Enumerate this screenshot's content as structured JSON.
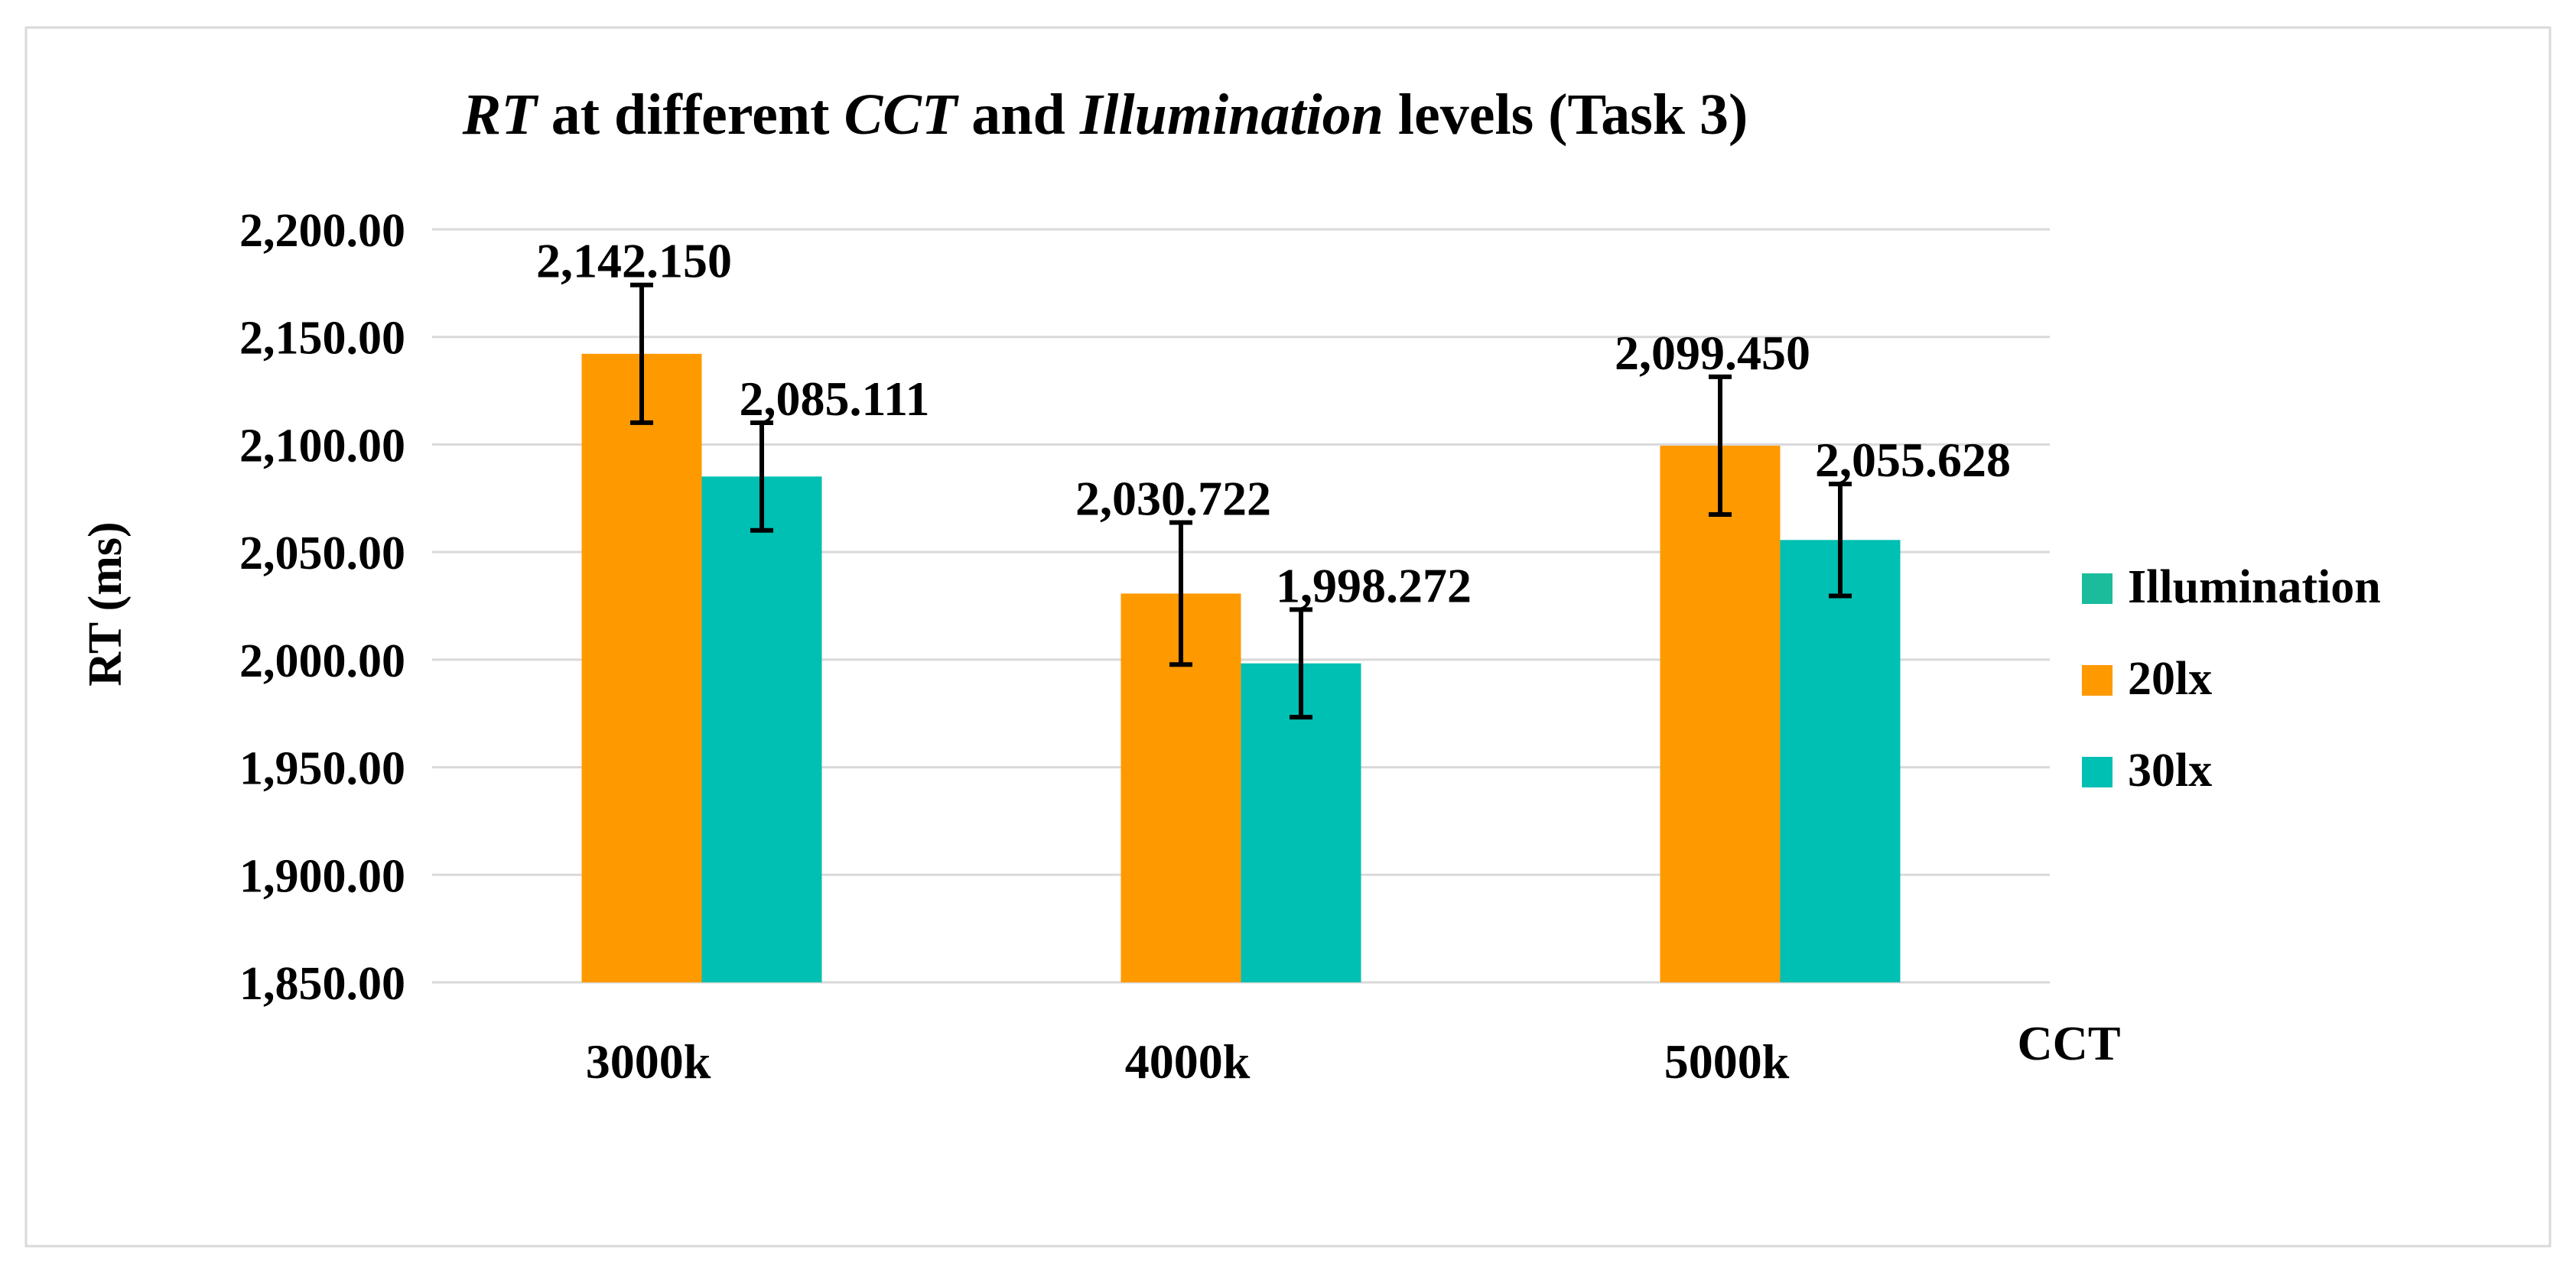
{
  "chart_data": {
    "type": "bar",
    "title": {
      "parts": [
        {
          "text": "RT",
          "italic": true
        },
        {
          "text": " at different ",
          "italic": false
        },
        {
          "text": "CCT",
          "italic": true
        },
        {
          "text": " and ",
          "italic": false
        },
        {
          "text": "Illumination",
          "italic": true
        },
        {
          "text": " levels (Task 3)",
          "italic": false
        }
      ]
    },
    "xlabel": "CCT",
    "ylabel": "RT (ms)",
    "ylim": [
      1850,
      2200
    ],
    "ytick_step": 50,
    "ytick_labels": [
      "1,850.00",
      "1,900.00",
      "1,950.00",
      "2,000.00",
      "2,050.00",
      "2,100.00",
      "2,150.00",
      "2,200.00"
    ],
    "grid": true,
    "legend_position": "right",
    "legend_title": {
      "name": "Illumination",
      "color": "#1ABC9C"
    },
    "categories": [
      "3000k",
      "4000k",
      "5000k"
    ],
    "series": [
      {
        "name": "20lx",
        "color": "#FF9900",
        "values": [
          2142.15,
          2030.722,
          2099.45
        ],
        "labels": [
          "2,142.150",
          "2,030.722",
          "2,099.450"
        ],
        "errors": [
          32,
          33,
          32
        ]
      },
      {
        "name": "30lx",
        "color": "#00BFB3",
        "values": [
          2085.111,
          1998.272,
          2055.628
        ],
        "labels": [
          "2,085.111",
          "1,998.272",
          "2,055.628"
        ],
        "errors": [
          25,
          25,
          26
        ]
      }
    ]
  }
}
